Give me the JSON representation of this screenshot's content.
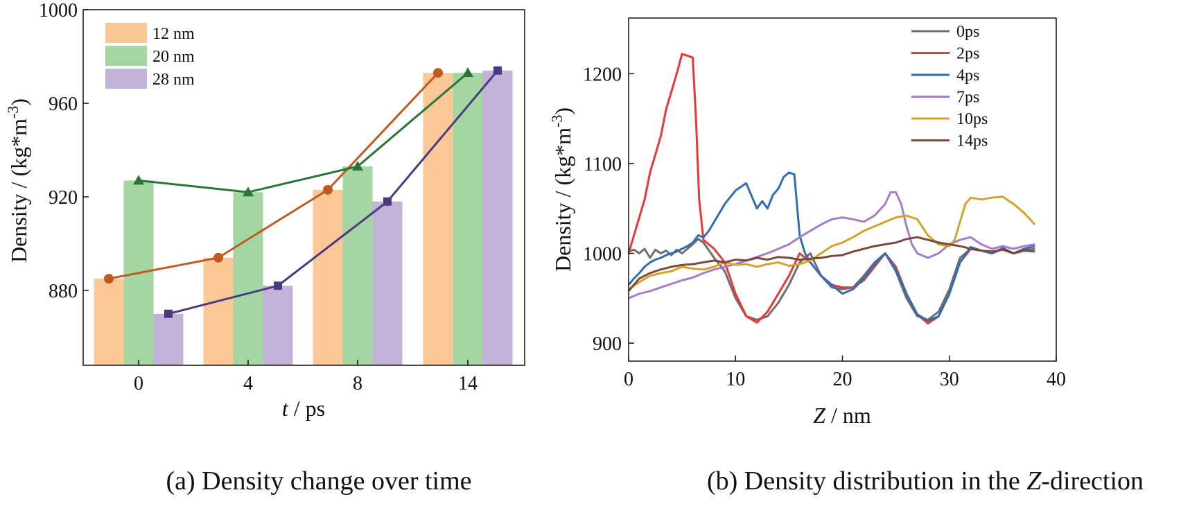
{
  "chart_data": [
    {
      "type": "bar",
      "panel": "a",
      "caption": "(a) Density change over time",
      "xlabel_italic": "t",
      "xlabel_rest": " / ps",
      "ylabel": "Density / (kg*m",
      "ylabel_sup": "-3",
      "ylabel_close": ")",
      "categories": [
        "0",
        "4",
        "8",
        "14"
      ],
      "ylim": [
        848,
        1000
      ],
      "yticks": [
        880,
        920,
        960,
        1000
      ],
      "legend_position": "top-left",
      "series": [
        {
          "name": "12 nm",
          "bar_color": "#F9C896",
          "line_color": "#BF5B1E",
          "marker": "circle",
          "values": [
            885,
            894,
            923,
            973
          ]
        },
        {
          "name": "20 nm",
          "bar_color": "#A4D6A1",
          "line_color": "#2A7535",
          "marker": "triangle",
          "values": [
            927,
            922,
            933,
            973
          ]
        },
        {
          "name": "28 nm",
          "bar_color": "#C3B3D9",
          "line_color": "#4B3A82",
          "marker": "square",
          "values": [
            870,
            882,
            918,
            974
          ]
        }
      ]
    },
    {
      "type": "line",
      "panel": "b",
      "caption_pre": "(b) Density distribution in the ",
      "caption_italic": "Z",
      "caption_post": "-direction",
      "xlabel_italic": "Z",
      "xlabel_rest": " / nm",
      "ylabel": "Density / (kg*m",
      "ylabel_sup": "-3",
      "ylabel_close": ")",
      "xlim": [
        0,
        40
      ],
      "ylim": [
        880,
        1262
      ],
      "xticks": [
        0,
        10,
        20,
        30,
        40
      ],
      "yticks": [
        900,
        1000,
        1100,
        1200
      ],
      "legend_position": "top-right",
      "series": [
        {
          "name": "0ps",
          "color": "#6E6E6E",
          "x": [
            0,
            0.5,
            1,
            1.5,
            2,
            2.5,
            3,
            3.5,
            4,
            4.5,
            5,
            5.5,
            6,
            6.5,
            7,
            8,
            9,
            10,
            11,
            12,
            13,
            14,
            15,
            16,
            17,
            18,
            19,
            20,
            21,
            22,
            23,
            24,
            25,
            26,
            27,
            28,
            29,
            30,
            31,
            32,
            33,
            34,
            35,
            36,
            37,
            38
          ],
          "y": [
            1002,
            1004,
            1000,
            1005,
            995,
            1004,
            1000,
            1003,
            998,
            1004,
            1000,
            1005,
            1010,
            1016,
            1012,
            995,
            980,
            950,
            930,
            926,
            930,
            945,
            965,
            990,
            1000,
            975,
            962,
            960,
            962,
            975,
            990,
            1000,
            980,
            950,
            930,
            926,
            935,
            960,
            995,
            1005,
            1003,
            1000,
            1005,
            1000,
            1003,
            1005
          ]
        },
        {
          "name": "2ps",
          "color": "#E53935",
          "x": [
            0,
            0.5,
            1,
            1.5,
            2,
            2.5,
            3,
            3.5,
            4,
            4.5,
            5,
            5.5,
            6,
            6.3,
            6.6,
            7,
            7.5,
            8,
            9,
            10,
            11,
            12,
            13,
            14,
            15,
            16,
            17,
            18,
            19,
            20,
            21,
            22,
            23,
            24,
            25,
            26,
            27,
            28,
            29,
            30,
            31,
            32,
            33,
            34,
            35,
            36,
            37,
            38
          ],
          "y": [
            1000,
            1020,
            1040,
            1060,
            1090,
            1110,
            1130,
            1160,
            1180,
            1200,
            1222,
            1220,
            1218,
            1150,
            1060,
            1015,
            1010,
            1005,
            990,
            955,
            930,
            923,
            935,
            955,
            975,
            1000,
            990,
            975,
            965,
            962,
            962,
            970,
            985,
            1000,
            985,
            955,
            932,
            922,
            930,
            955,
            990,
            1005,
            1003,
            1000,
            1005,
            1000,
            1005,
            1008
          ]
        },
        {
          "name": "4ps",
          "color": "#2F6DB5",
          "x": [
            0,
            0.5,
            1,
            1.5,
            2,
            2.5,
            3,
            3.5,
            4,
            4.5,
            5,
            5.5,
            6,
            6.5,
            7,
            7.5,
            8,
            9,
            10,
            11,
            12,
            12.5,
            13,
            13.5,
            14,
            14.5,
            15,
            15.5,
            16,
            16.5,
            17,
            18,
            19,
            20,
            21,
            22,
            23,
            24,
            25,
            26,
            27,
            28,
            29,
            30,
            31,
            32,
            33,
            34,
            35,
            36,
            37,
            38
          ],
          "y": [
            965,
            972,
            978,
            985,
            990,
            993,
            995,
            998,
            1000,
            1002,
            1005,
            1008,
            1012,
            1020,
            1018,
            1025,
            1035,
            1055,
            1070,
            1078,
            1050,
            1058,
            1050,
            1065,
            1072,
            1085,
            1090,
            1088,
            1020,
            1000,
            990,
            975,
            965,
            955,
            960,
            972,
            988,
            1000,
            982,
            955,
            932,
            925,
            930,
            955,
            990,
            1007,
            1003,
            1000,
            1006,
            1000,
            1005,
            1008
          ]
        },
        {
          "name": "7ps",
          "color": "#A57DC8",
          "x": [
            0,
            1,
            2,
            3,
            4,
            5,
            6,
            7,
            8,
            9,
            10,
            11,
            12,
            13,
            14,
            15,
            16,
            17,
            18,
            19,
            20,
            21,
            22,
            23,
            24,
            24.5,
            25,
            25.5,
            26,
            26.5,
            27,
            28,
            29,
            30,
            31,
            32,
            33,
            34,
            35,
            36,
            37,
            38
          ],
          "y": [
            950,
            955,
            958,
            962,
            966,
            970,
            973,
            978,
            982,
            985,
            988,
            992,
            996,
            1000,
            1005,
            1010,
            1018,
            1025,
            1032,
            1038,
            1040,
            1038,
            1035,
            1042,
            1055,
            1068,
            1068,
            1055,
            1030,
            1010,
            1000,
            995,
            1000,
            1010,
            1015,
            1018,
            1010,
            1005,
            1008,
            1005,
            1008,
            1010
          ]
        },
        {
          "name": "10ps",
          "color": "#D4A22C",
          "x": [
            0,
            1,
            2,
            3,
            4,
            5,
            6,
            7,
            8,
            9,
            10,
            11,
            12,
            13,
            14,
            15,
            16,
            17,
            18,
            19,
            20,
            21,
            22,
            23,
            24,
            25,
            26,
            27,
            28,
            29,
            30,
            30.5,
            31,
            31.5,
            32,
            33,
            34,
            35,
            36,
            37,
            38
          ],
          "y": [
            960,
            968,
            975,
            978,
            980,
            985,
            983,
            982,
            985,
            990,
            987,
            988,
            985,
            988,
            990,
            986,
            988,
            992,
            1000,
            1008,
            1012,
            1018,
            1025,
            1030,
            1035,
            1040,
            1042,
            1038,
            1020,
            1010,
            1008,
            1015,
            1035,
            1055,
            1062,
            1060,
            1062,
            1063,
            1055,
            1045,
            1032
          ]
        },
        {
          "name": "14ps",
          "color": "#7A4A3C",
          "x": [
            0,
            1,
            2,
            3,
            4,
            5,
            6,
            7,
            8,
            9,
            10,
            11,
            12,
            13,
            14,
            15,
            16,
            17,
            18,
            19,
            20,
            21,
            22,
            23,
            24,
            25,
            26,
            27,
            28,
            29,
            30,
            31,
            32,
            33,
            34,
            35,
            36,
            37,
            38
          ],
          "y": [
            958,
            972,
            978,
            982,
            985,
            987,
            988,
            990,
            992,
            990,
            993,
            992,
            995,
            993,
            996,
            995,
            993,
            994,
            995,
            997,
            998,
            1002,
            1005,
            1008,
            1010,
            1012,
            1016,
            1018,
            1015,
            1012,
            1010,
            1008,
            1005,
            1003,
            1002,
            1004,
            1000,
            1003,
            1002
          ]
        }
      ]
    }
  ]
}
